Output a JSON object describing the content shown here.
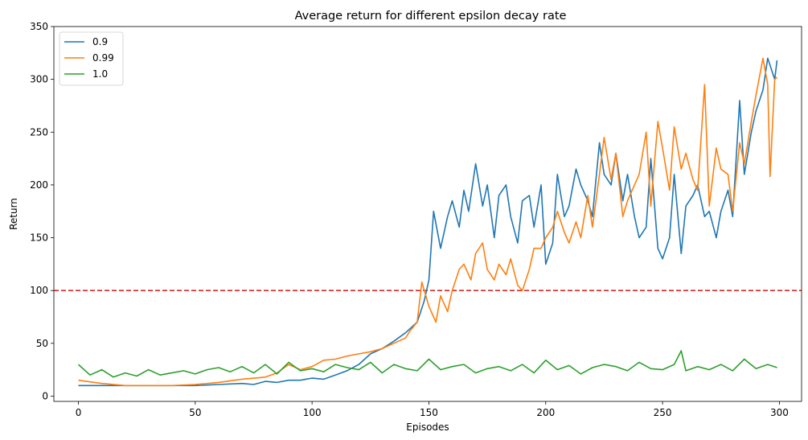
{
  "chart_data": {
    "type": "line",
    "title": "Average return for different epsilon decay rate",
    "xlabel": "Episodes",
    "ylabel": "Return",
    "xlim": [
      -10.5,
      309.5
    ],
    "ylim": [
      -5,
      350
    ],
    "xticks": [
      0,
      50,
      100,
      150,
      200,
      250,
      300
    ],
    "yticks": [
      0,
      50,
      100,
      150,
      200,
      250,
      300,
      350
    ],
    "grid": false,
    "legend_position": "top-left",
    "reference_line": {
      "y": 100,
      "color": "#d62728",
      "style": "dashed"
    },
    "series": [
      {
        "name": "0.9",
        "color": "#1f77b4",
        "x": [
          0,
          10,
          20,
          30,
          40,
          50,
          60,
          70,
          75,
          80,
          85,
          90,
          95,
          100,
          105,
          110,
          115,
          120,
          125,
          130,
          135,
          140,
          145,
          148,
          150,
          152,
          155,
          158,
          160,
          163,
          165,
          167,
          170,
          173,
          175,
          178,
          180,
          183,
          185,
          188,
          190,
          193,
          195,
          198,
          200,
          203,
          205,
          208,
          210,
          213,
          215,
          218,
          220,
          223,
          225,
          228,
          230,
          233,
          235,
          238,
          240,
          243,
          245,
          248,
          250,
          253,
          255,
          258,
          260,
          263,
          265,
          268,
          270,
          273,
          275,
          278,
          280,
          283,
          285,
          288,
          290,
          293,
          295,
          298,
          299
        ],
        "y": [
          10,
          10,
          10,
          10,
          10,
          10,
          11,
          12,
          11,
          14,
          13,
          15,
          15,
          17,
          16,
          20,
          24,
          30,
          40,
          45,
          52,
          60,
          70,
          90,
          110,
          175,
          140,
          170,
          185,
          160,
          195,
          175,
          220,
          180,
          200,
          150,
          190,
          200,
          170,
          145,
          185,
          190,
          160,
          200,
          125,
          145,
          210,
          170,
          180,
          215,
          200,
          185,
          170,
          240,
          210,
          200,
          230,
          185,
          210,
          170,
          150,
          160,
          225,
          140,
          130,
          150,
          210,
          135,
          180,
          190,
          200,
          170,
          175,
          150,
          175,
          195,
          170,
          280,
          210,
          250,
          270,
          290,
          320,
          300,
          318
        ]
      },
      {
        "name": "0.99",
        "color": "#ff7f0e",
        "x": [
          0,
          10,
          20,
          30,
          40,
          50,
          60,
          70,
          80,
          85,
          90,
          95,
          100,
          105,
          110,
          115,
          120,
          125,
          130,
          135,
          140,
          142,
          145,
          147,
          150,
          153,
          155,
          158,
          160,
          163,
          165,
          168,
          170,
          173,
          175,
          178,
          180,
          183,
          185,
          188,
          190,
          193,
          195,
          198,
          200,
          203,
          205,
          208,
          210,
          213,
          215,
          218,
          220,
          223,
          225,
          228,
          230,
          233,
          235,
          238,
          240,
          243,
          245,
          248,
          250,
          253,
          255,
          258,
          260,
          263,
          265,
          268,
          270,
          273,
          275,
          278,
          280,
          283,
          285,
          288,
          290,
          293,
          295,
          296,
          298,
          299
        ],
        "y": [
          15,
          12,
          10,
          10,
          10,
          11,
          13,
          16,
          18,
          22,
          30,
          25,
          28,
          34,
          35,
          38,
          40,
          42,
          45,
          50,
          55,
          62,
          70,
          108,
          85,
          70,
          95,
          80,
          100,
          120,
          125,
          110,
          135,
          145,
          120,
          110,
          125,
          115,
          130,
          105,
          100,
          120,
          140,
          140,
          150,
          160,
          175,
          155,
          145,
          165,
          150,
          190,
          160,
          210,
          245,
          205,
          230,
          170,
          185,
          200,
          210,
          250,
          180,
          260,
          235,
          195,
          255,
          215,
          230,
          205,
          195,
          295,
          180,
          235,
          215,
          210,
          175,
          240,
          220,
          260,
          285,
          320,
          295,
          208,
          300,
          302
        ]
      },
      {
        "name": "1.0",
        "color": "#2ca02c",
        "x": [
          0,
          5,
          10,
          15,
          20,
          25,
          30,
          35,
          40,
          45,
          50,
          55,
          60,
          65,
          70,
          75,
          80,
          85,
          90,
          95,
          100,
          105,
          110,
          115,
          120,
          125,
          130,
          135,
          140,
          145,
          150,
          155,
          160,
          165,
          170,
          175,
          180,
          185,
          190,
          195,
          200,
          205,
          210,
          215,
          220,
          225,
          230,
          235,
          240,
          245,
          250,
          255,
          258,
          260,
          265,
          270,
          275,
          280,
          285,
          290,
          295,
          299
        ],
        "y": [
          30,
          20,
          25,
          18,
          22,
          19,
          25,
          20,
          22,
          24,
          21,
          25,
          27,
          23,
          28,
          22,
          30,
          21,
          32,
          24,
          26,
          23,
          30,
          27,
          25,
          32,
          22,
          30,
          26,
          24,
          35,
          25,
          28,
          30,
          22,
          26,
          28,
          24,
          30,
          22,
          34,
          25,
          29,
          21,
          27,
          30,
          28,
          24,
          32,
          26,
          25,
          30,
          43,
          24,
          28,
          25,
          30,
          24,
          35,
          26,
          30,
          27
        ]
      }
    ]
  }
}
